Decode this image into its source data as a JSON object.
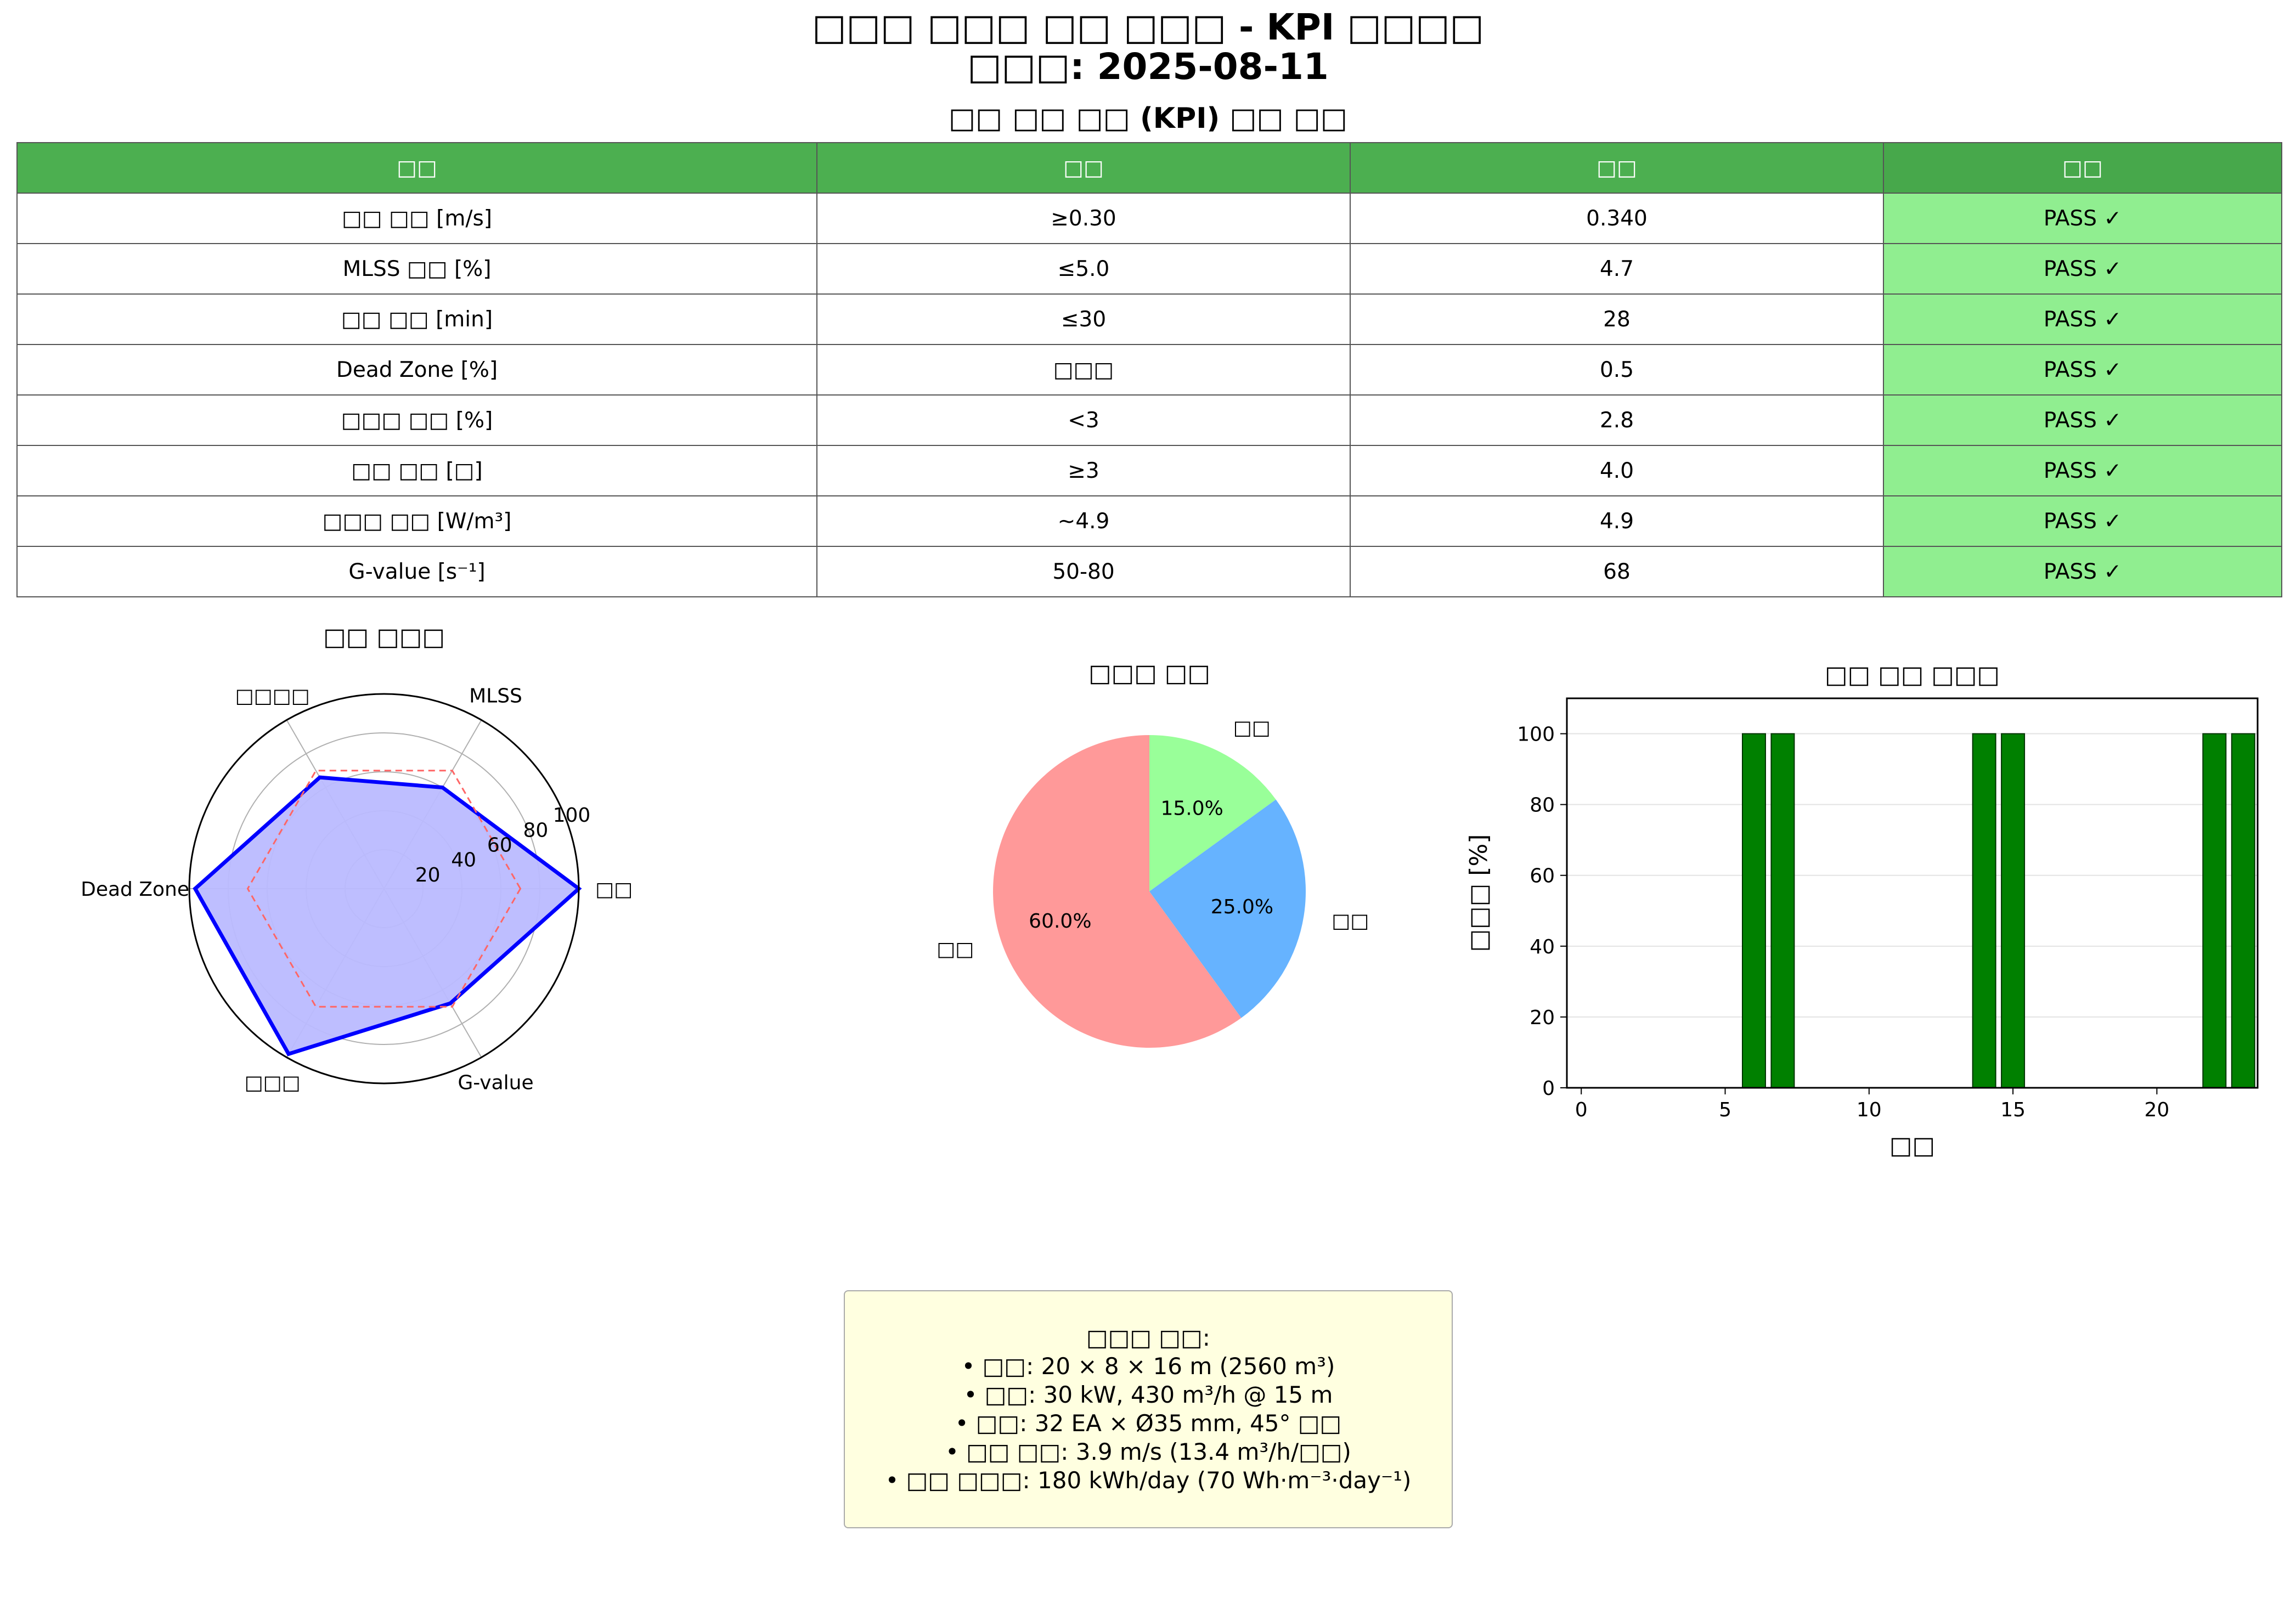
{
  "header": {
    "title_line1": "□□□ □□□ □□ □□□ - KPI □□□□",
    "title_line2": "□□□: 2025-08-11",
    "table_title": "□□ □□ □□ (KPI) □□ □□"
  },
  "kpi_table": {
    "columns": [
      "□□",
      "□□",
      "□□",
      "□□"
    ],
    "rows": [
      [
        "□□ □□ [m/s]",
        "≥0.30",
        "0.340",
        "PASS ✓"
      ],
      [
        "MLSS □□ [%]",
        "≤5.0",
        "4.7",
        "PASS ✓"
      ],
      [
        "□□ □□ [min]",
        "≤30",
        "28",
        "PASS ✓"
      ],
      [
        "Dead Zone [%]",
        "□□□",
        "0.5",
        "PASS ✓"
      ],
      [
        "□□□ □□ [%]",
        "<3",
        "2.8",
        "PASS ✓"
      ],
      [
        "□□ □□ [□]",
        "≥3",
        "4.0",
        "PASS ✓"
      ],
      [
        "□□□ □□ [W/m³]",
        "~4.9",
        "4.9",
        "PASS ✓"
      ],
      [
        "G-value [s⁻¹]",
        "50-80",
        "68",
        "PASS ✓"
      ]
    ],
    "colors": {
      "header": "#4caf50",
      "pass": "#90ee90"
    }
  },
  "chart_data": [
    {
      "type": "radar",
      "title": "□□ □□□",
      "axes": [
        "□□",
        "MLSS",
        "□□□□",
        "Dead Zone",
        "□□□",
        "G-value"
      ],
      "rlim": [
        0,
        100
      ],
      "rticks": [
        20,
        40,
        60,
        80,
        100
      ],
      "series": [
        {
          "values": [
            100,
            60,
            66,
            97,
            98,
            68
          ],
          "color": "#0000ff",
          "fill": "#bbbbff",
          "style": "solid"
        },
        {
          "values": [
            70,
            70,
            70,
            70,
            70,
            70
          ],
          "color": "#ff6666",
          "style": "dashed"
        }
      ]
    },
    {
      "type": "pie",
      "title": "□□□ □□",
      "slices": [
        {
          "label": "□□",
          "value": 15.0,
          "pct": "15.0%",
          "color": "#99ff99"
        },
        {
          "label": "□□ □□",
          "value": 25.0,
          "pct": "25.0%",
          "color": "#66b3ff"
        },
        {
          "label": "□□",
          "value": 60.0,
          "pct": "60.0%",
          "color": "#ff9999"
        }
      ]
    },
    {
      "type": "bar",
      "title": "□□ □□ □□□",
      "xlabel": "□□",
      "ylabel": "□□□ [%]",
      "x": [
        6,
        7,
        14,
        15,
        22,
        23
      ],
      "values": [
        100,
        100,
        100,
        100,
        100,
        100
      ],
      "xlim": [
        -0.5,
        23.5
      ],
      "ylim": [
        0,
        110
      ],
      "xticks": [
        0,
        5,
        10,
        15,
        20
      ],
      "yticks": [
        0,
        20,
        40,
        60,
        80,
        100
      ],
      "grid": "y",
      "bar_color": "#008000"
    }
  ],
  "info_box": {
    "lines": [
      "□□□ □□:",
      "• □□: 20 × 8 × 16 m (2560 m³)",
      "• □□: 30 kW, 430 m³/h @ 15 m",
      "• □□: 32 EA × Ø35 mm, 45° □□",
      "• □□ □□: 3.9 m/s (13.4 m³/h/□□)",
      "• □□ □□□: 180 kWh/day (70 Wh·m⁻³·day⁻¹)"
    ]
  }
}
